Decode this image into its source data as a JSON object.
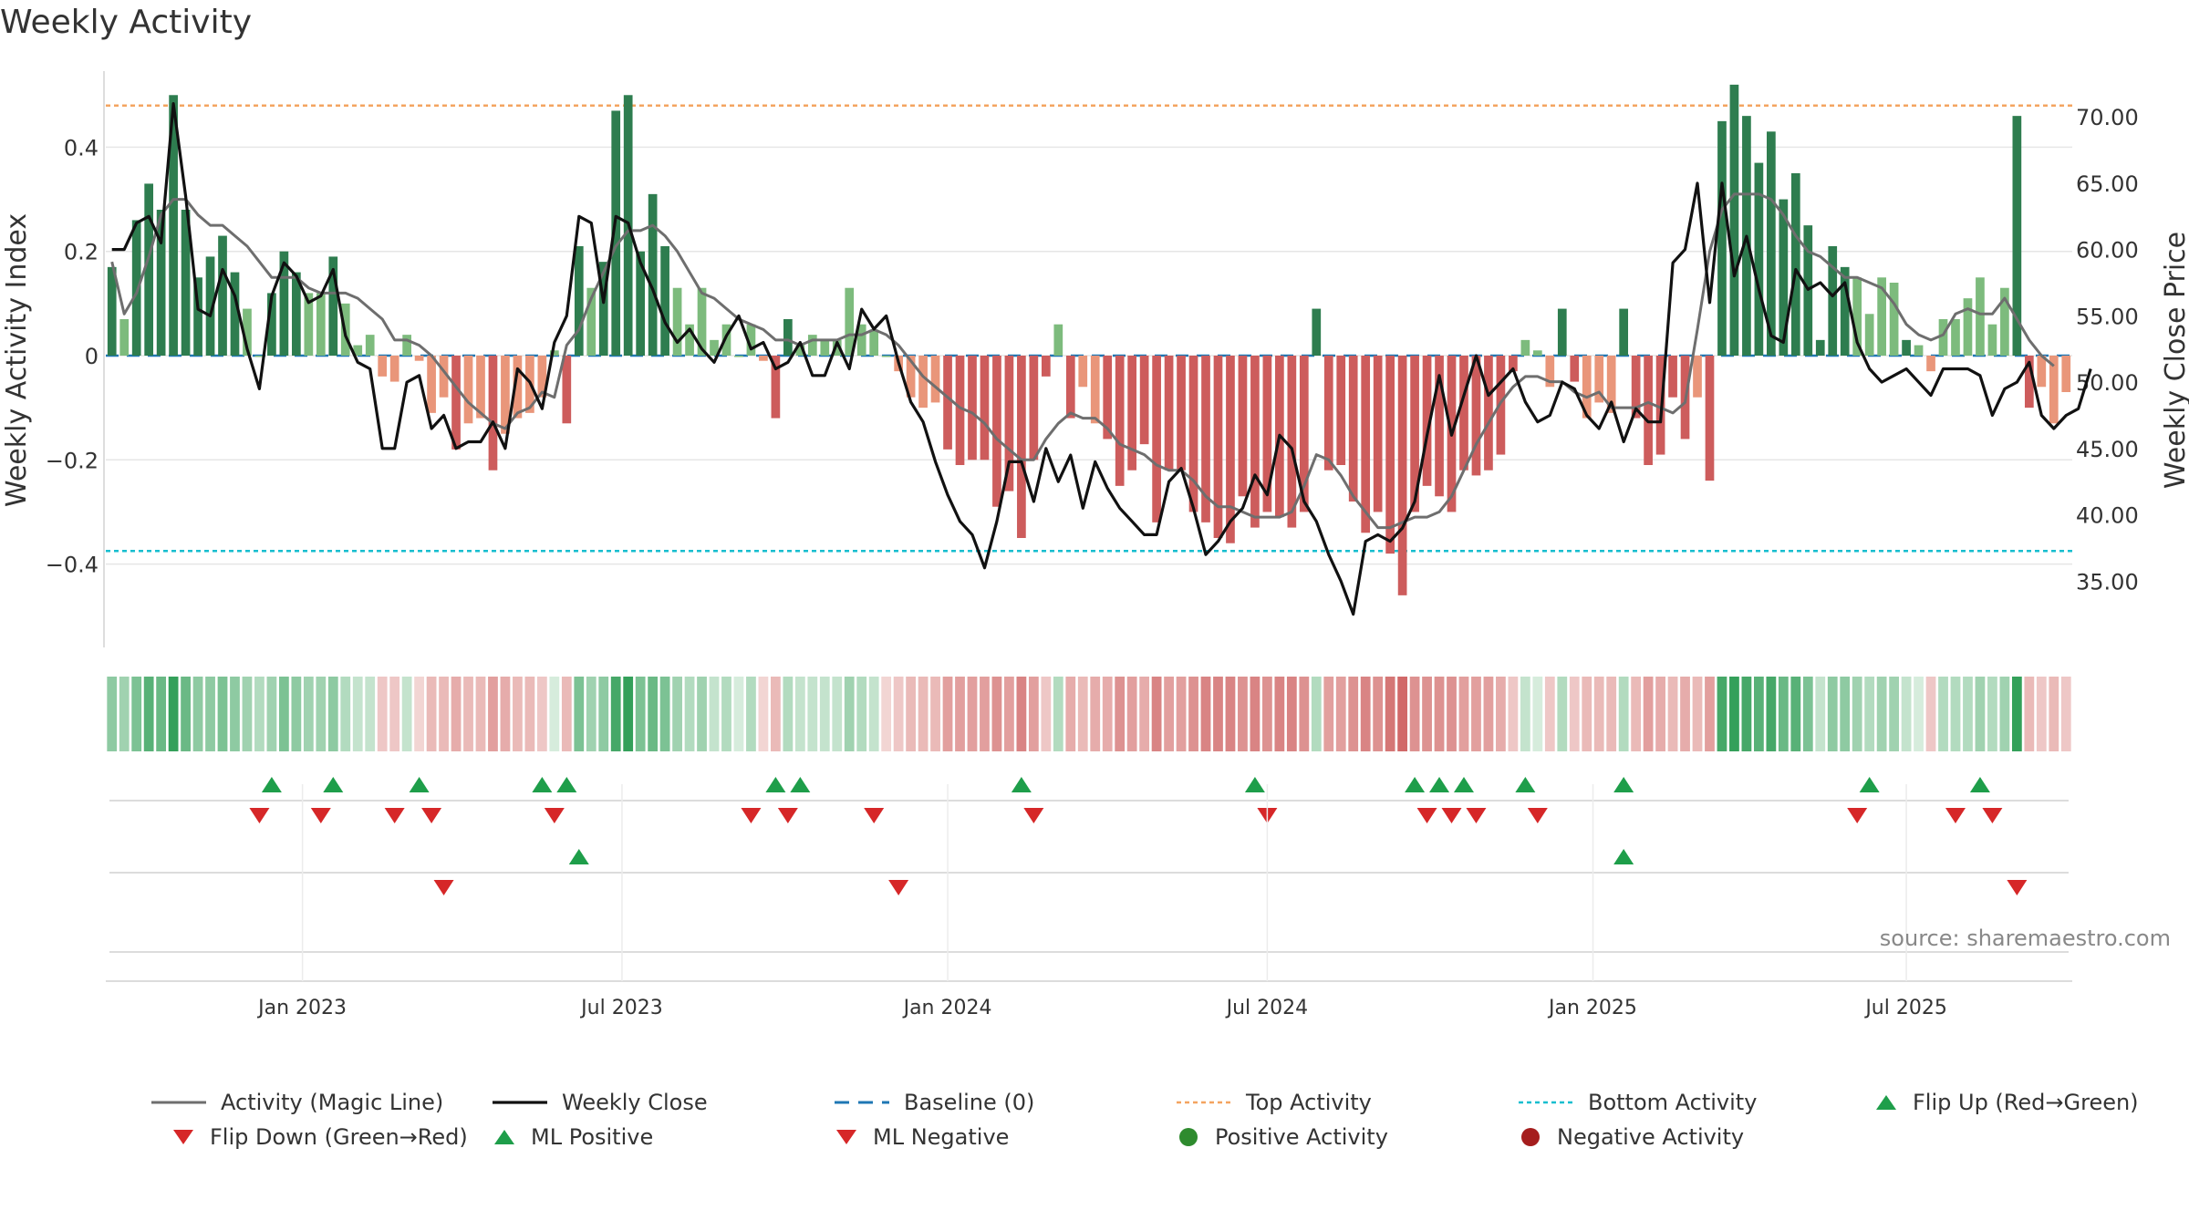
{
  "title": "Weekly Activity",
  "source": "source: sharemaestro.com",
  "colors": {
    "pos_dark": "#2e7d4f",
    "pos_light": "#7dbb7d",
    "neg_dark": "#cd5c5c",
    "neg_light": "#e9967a",
    "magic": "#6e6e6e",
    "close": "#111111",
    "baseline": "#1f77b4",
    "top": "#f4a460",
    "bottom": "#17becf",
    "flip_up": "#1e9e4a",
    "flip_down": "#d62728",
    "pos_dot": "#2e8b2e",
    "neg_dot": "#a51d1d"
  },
  "chart_data": {
    "type": "bar",
    "title": "Weekly Activity",
    "ylabel": "Weekly Activity Index",
    "y2label": "Weekly Close Price",
    "ylim": [
      -0.56,
      0.56
    ],
    "y2lim": [
      30.0,
      74.0
    ],
    "yticks": [
      -0.4,
      -0.2,
      0,
      0.2,
      0.4
    ],
    "ytick_labels": [
      "−0.4",
      "−0.2",
      "0",
      "0.2",
      "0.4"
    ],
    "y2ticks": [
      35,
      40,
      45,
      50,
      55,
      60,
      65,
      70
    ],
    "y2tick_labels": [
      "35.00",
      "40.00",
      "45.00",
      "50.00",
      "55.00",
      "60.00",
      "65.00",
      "70.00"
    ],
    "top_activity": 0.48,
    "bottom_activity": -0.375,
    "start_date": "2022-09-12",
    "x_tick_labels": [
      "Jan 2023",
      "Jul 2023",
      "Jan 2024",
      "Jul 2024",
      "Jan 2025",
      "Jul 2025"
    ],
    "x_tick_weeks": [
      16,
      42,
      68.5,
      94.5,
      121,
      146.5
    ],
    "activity": [
      0.17,
      0.07,
      0.26,
      0.33,
      0.28,
      0.5,
      0.28,
      0.15,
      0.19,
      0.23,
      0.16,
      0.09,
      0.0,
      0.12,
      0.2,
      0.16,
      0.12,
      0.12,
      0.19,
      0.1,
      0.02,
      0.04,
      -0.04,
      -0.05,
      0.04,
      -0.01,
      -0.11,
      -0.08,
      -0.18,
      -0.13,
      -0.12,
      -0.22,
      -0.15,
      -0.12,
      -0.11,
      -0.08,
      0.01,
      -0.13,
      0.21,
      0.13,
      0.18,
      0.47,
      0.5,
      0.2,
      0.31,
      0.21,
      0.13,
      0.06,
      0.13,
      0.03,
      0.06,
      0.0,
      0.06,
      -0.01,
      -0.12,
      0.07,
      0.02,
      0.04,
      0.03,
      0.03,
      0.13,
      0.06,
      0.05,
      0.0,
      -0.03,
      -0.08,
      -0.1,
      -0.09,
      -0.18,
      -0.21,
      -0.2,
      -0.2,
      -0.29,
      -0.26,
      -0.35,
      -0.2,
      -0.04,
      0.06,
      -0.12,
      -0.06,
      -0.13,
      -0.16,
      -0.25,
      -0.22,
      -0.17,
      -0.32,
      -0.22,
      -0.22,
      -0.3,
      -0.32,
      -0.35,
      -0.36,
      -0.27,
      -0.33,
      -0.3,
      -0.31,
      -0.33,
      -0.3,
      0.09,
      -0.22,
      -0.21,
      -0.28,
      -0.34,
      -0.3,
      -0.38,
      -0.46,
      -0.3,
      -0.25,
      -0.27,
      -0.3,
      -0.22,
      -0.23,
      -0.22,
      -0.19,
      -0.03,
      0.03,
      0.01,
      -0.06,
      0.09,
      -0.05,
      -0.12,
      -0.09,
      -0.11,
      0.09,
      -0.12,
      -0.21,
      -0.19,
      -0.08,
      -0.16,
      -0.08,
      -0.24,
      0.45,
      0.52,
      0.46,
      0.37,
      0.43,
      0.3,
      0.35,
      0.25,
      0.03,
      0.21,
      0.17,
      0.15,
      0.08,
      0.15,
      0.14,
      0.03,
      0.02,
      -0.03,
      0.07,
      0.07,
      0.11,
      0.15,
      0.06,
      0.13,
      0.46,
      -0.1,
      -0.06,
      -0.13,
      -0.07
    ],
    "magic_line": [
      0.18,
      0.08,
      0.12,
      0.19,
      0.27,
      0.3,
      0.3,
      0.27,
      0.25,
      0.25,
      0.23,
      0.21,
      0.18,
      0.15,
      0.15,
      0.15,
      0.13,
      0.12,
      0.12,
      0.12,
      0.11,
      0.09,
      0.07,
      0.03,
      0.03,
      0.02,
      0.0,
      -0.03,
      -0.06,
      -0.09,
      -0.11,
      -0.13,
      -0.14,
      -0.11,
      -0.1,
      -0.07,
      -0.08,
      0.02,
      0.05,
      0.11,
      0.16,
      0.21,
      0.24,
      0.24,
      0.25,
      0.23,
      0.2,
      0.16,
      0.12,
      0.11,
      0.09,
      0.07,
      0.06,
      0.05,
      0.03,
      0.03,
      0.02,
      0.03,
      0.03,
      0.03,
      0.04,
      0.04,
      0.05,
      0.04,
      0.02,
      -0.01,
      -0.04,
      -0.06,
      -0.08,
      -0.1,
      -0.11,
      -0.13,
      -0.16,
      -0.18,
      -0.2,
      -0.2,
      -0.16,
      -0.13,
      -0.11,
      -0.12,
      -0.12,
      -0.14,
      -0.17,
      -0.18,
      -0.19,
      -0.21,
      -0.22,
      -0.22,
      -0.24,
      -0.27,
      -0.29,
      -0.29,
      -0.3,
      -0.31,
      -0.31,
      -0.31,
      -0.3,
      -0.25,
      -0.19,
      -0.2,
      -0.23,
      -0.27,
      -0.3,
      -0.33,
      -0.33,
      -0.32,
      -0.31,
      -0.31,
      -0.3,
      -0.27,
      -0.22,
      -0.17,
      -0.13,
      -0.09,
      -0.06,
      -0.04,
      -0.04,
      -0.05,
      -0.05,
      -0.07,
      -0.08,
      -0.07,
      -0.1,
      -0.1,
      -0.1,
      -0.09,
      -0.1,
      -0.11,
      -0.09,
      0.05,
      0.2,
      0.28,
      0.31,
      0.31,
      0.31,
      0.3,
      0.27,
      0.23,
      0.2,
      0.19,
      0.17,
      0.15,
      0.15,
      0.14,
      0.13,
      0.1,
      0.06,
      0.04,
      0.03,
      0.04,
      0.08,
      0.09,
      0.08,
      0.08,
      0.11,
      0.07,
      0.03,
      0.0,
      -0.02
    ],
    "weekly_close": [
      60,
      60,
      62,
      62.5,
      60.5,
      71,
      64,
      55.5,
      55,
      58.5,
      56.5,
      52.5,
      49.5,
      56.5,
      59,
      58,
      56,
      56.5,
      58.5,
      53.5,
      51.5,
      51,
      45,
      45,
      50,
      50.5,
      46.5,
      47.5,
      45,
      45.5,
      45.5,
      47,
      45,
      51,
      50,
      48,
      53,
      55,
      62.5,
      62,
      56,
      62.5,
      62,
      59,
      57,
      54.5,
      53,
      54,
      52.5,
      51.5,
      53.5,
      55,
      52.5,
      53,
      51,
      51.5,
      53,
      50.5,
      50.5,
      53,
      51,
      55.5,
      54,
      55,
      51.5,
      48.5,
      47,
      44,
      41.5,
      39.5,
      38.5,
      36,
      39.5,
      44,
      44,
      41,
      45,
      42.5,
      44.5,
      40.5,
      44,
      42,
      40.5,
      39.5,
      38.5,
      38.5,
      42.5,
      43.5,
      40.5,
      37,
      38,
      39.5,
      40.5,
      43,
      41.5,
      46,
      45,
      41,
      39.5,
      37,
      35,
      32.5,
      38,
      38.5,
      38,
      39,
      41,
      46,
      50.5,
      46,
      49,
      52,
      49,
      50,
      51,
      48.5,
      47,
      47.5,
      50,
      49.5,
      47.5,
      46.5,
      48.5,
      45.5,
      48,
      47,
      47,
      59,
      60,
      65,
      56,
      65,
      58,
      61,
      57,
      53.5,
      53,
      58.5,
      57,
      57.5,
      56.5,
      57.5,
      53,
      51,
      50,
      50.5,
      51,
      50,
      49,
      51,
      51,
      51,
      50.5,
      47.5,
      49.5,
      50,
      51.5,
      47.5,
      46.5,
      47.5,
      48,
      51
    ],
    "color_strip_levels": [
      0.5,
      0.4,
      0.6,
      0.8,
      0.7,
      1.0,
      0.7,
      0.5,
      0.5,
      0.6,
      0.5,
      0.4,
      0.3,
      0.4,
      0.6,
      0.5,
      0.4,
      0.4,
      0.5,
      0.3,
      0.2,
      0.2,
      -0.2,
      -0.2,
      0.2,
      -0.1,
      -0.3,
      -0.3,
      -0.4,
      -0.3,
      -0.3,
      -0.5,
      -0.4,
      -0.3,
      -0.3,
      -0.2,
      0.1,
      -0.3,
      0.6,
      0.4,
      0.5,
      0.9,
      1.0,
      0.6,
      0.7,
      0.6,
      0.4,
      0.3,
      0.4,
      0.2,
      0.3,
      0.1,
      0.3,
      -0.1,
      -0.3,
      0.3,
      0.2,
      0.2,
      0.2,
      0.2,
      0.4,
      0.3,
      0.2,
      -0.1,
      -0.2,
      -0.3,
      -0.3,
      -0.3,
      -0.5,
      -0.5,
      -0.5,
      -0.5,
      -0.6,
      -0.5,
      -0.7,
      -0.5,
      -0.2,
      0.3,
      -0.4,
      -0.3,
      -0.4,
      -0.4,
      -0.6,
      -0.5,
      -0.4,
      -0.7,
      -0.5,
      -0.5,
      -0.6,
      -0.7,
      -0.7,
      -0.7,
      -0.6,
      -0.7,
      -0.6,
      -0.7,
      -0.7,
      -0.6,
      0.3,
      -0.5,
      -0.5,
      -0.6,
      -0.7,
      -0.6,
      -0.8,
      -0.9,
      -0.6,
      -0.6,
      -0.6,
      -0.6,
      -0.5,
      -0.5,
      -0.5,
      -0.4,
      -0.2,
      0.2,
      0.1,
      -0.2,
      0.3,
      -0.2,
      -0.3,
      -0.3,
      -0.3,
      0.3,
      -0.3,
      -0.5,
      -0.4,
      -0.3,
      -0.4,
      -0.3,
      -0.5,
      0.9,
      1.0,
      0.9,
      0.8,
      0.9,
      0.7,
      0.8,
      0.6,
      0.2,
      0.5,
      0.5,
      0.4,
      0.3,
      0.4,
      0.4,
      0.2,
      0.1,
      -0.2,
      0.3,
      0.3,
      0.3,
      0.4,
      0.3,
      0.4,
      1.0,
      -0.3,
      -0.2,
      -0.3,
      -0.2
    ],
    "flip_up_weeks": [
      13,
      18,
      25,
      35,
      37,
      54,
      56,
      74,
      93,
      106,
      108,
      110,
      115,
      123,
      143,
      152
    ],
    "flip_down_weeks": [
      12,
      17,
      23,
      26,
      36,
      52,
      55,
      62,
      75,
      94,
      107,
      109,
      111,
      116,
      142,
      150,
      153
    ],
    "ml_positive_weeks": [
      38,
      123
    ],
    "ml_negative_weeks": [
      27,
      64,
      155
    ],
    "positive_activity_weeks": [],
    "negative_activity_weeks": []
  },
  "legend": [
    {
      "label": "Activity (Magic Line)",
      "marker": "line-gray"
    },
    {
      "label": "Weekly Close",
      "marker": "line-black"
    },
    {
      "label": "Baseline (0)",
      "marker": "dash-blue"
    },
    {
      "label": "Top Activity",
      "marker": "dot-orange"
    },
    {
      "label": "Bottom Activity",
      "marker": "dot-cyan"
    },
    {
      "label": "Flip Up (Red→Green)",
      "marker": "tri-up-green"
    },
    {
      "label": "Flip Down (Green→Red)",
      "marker": "tri-down-red"
    },
    {
      "label": "ML Positive",
      "marker": "tri-up-green"
    },
    {
      "label": "ML Negative",
      "marker": "tri-down-red"
    },
    {
      "label": "Positive Activity",
      "marker": "circle-green"
    },
    {
      "label": "Negative Activity",
      "marker": "circle-darkred"
    }
  ]
}
